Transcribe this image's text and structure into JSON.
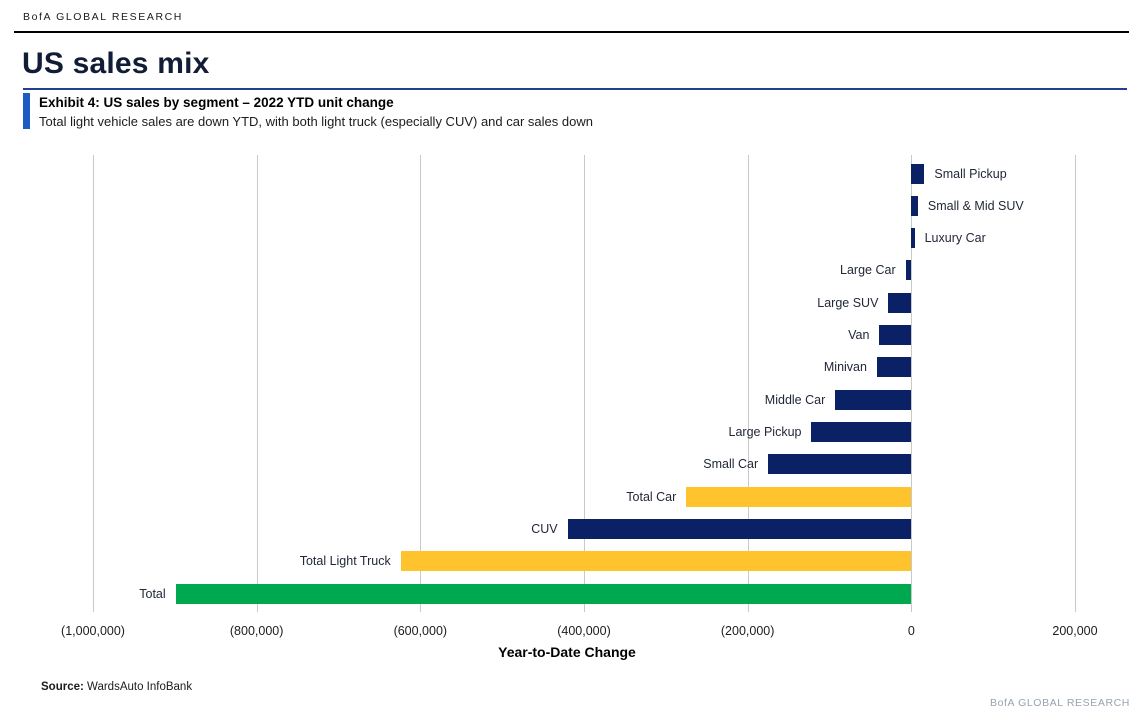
{
  "header": {
    "brand": "BofA GLOBAL RESEARCH",
    "page_title": "US sales mix"
  },
  "exhibit": {
    "title": "Exhibit 4: US sales by segment – 2022 YTD unit change",
    "subtitle": "Total light vehicle sales are down YTD, with both light truck (especially CUV) and car sales down"
  },
  "chart_data": {
    "type": "bar",
    "orientation": "horizontal",
    "title": "Exhibit 4: US sales by segment – 2022 YTD unit change",
    "xlabel": "Year-to-Date Change",
    "ylabel": "",
    "xlim": [
      -1000000,
      200000
    ],
    "tick_interval": 200000,
    "tick_labels": [
      "(1,000,000)",
      "(800,000)",
      "(600,000)",
      "(400,000)",
      "(200,000)",
      "0",
      "200,000"
    ],
    "categories": [
      "Small Pickup",
      "Small & Mid SUV",
      "Luxury Car",
      "Large Car",
      "Large SUV",
      "Van",
      "Minivan",
      "Middle Car",
      "Large Pickup",
      "Small Car",
      "Total Car",
      "CUV",
      "Total Light Truck",
      "Total"
    ],
    "values": [
      16000,
      8000,
      4000,
      -7000,
      -28000,
      -39000,
      -42000,
      -93000,
      -122000,
      -175000,
      -275000,
      -420000,
      -624000,
      -899000
    ],
    "color_roles": [
      "segment",
      "segment",
      "segment",
      "segment",
      "segment",
      "segment",
      "segment",
      "segment",
      "segment",
      "segment",
      "subtotal",
      "segment",
      "subtotal",
      "total"
    ],
    "colors": {
      "segment": "#0a2166",
      "subtotal": "#fec32d",
      "total": "#00a84f",
      "gridline": "#c9c9c9"
    },
    "grid": true,
    "legend": "none"
  },
  "accents": {
    "title_rule": "#23408f",
    "exhibit_bar": "#1d5bc4"
  },
  "footer": {
    "source_label": "Source:",
    "source_text": "WardsAuto InfoBank",
    "brand": "BofA GLOBAL RESEARCH"
  }
}
